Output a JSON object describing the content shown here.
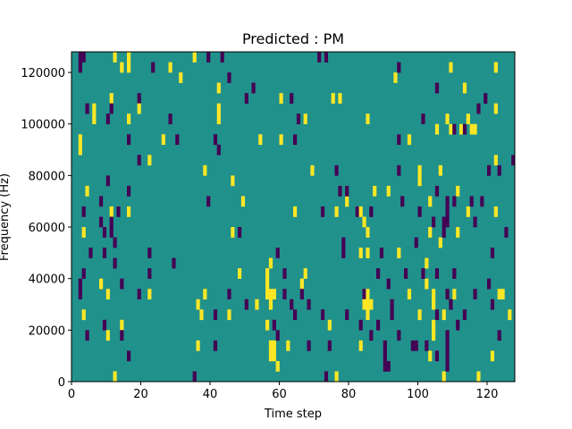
{
  "chart_data": {
    "type": "heatmap",
    "title": "Predicted : PM",
    "xlabel": "Time step",
    "ylabel": "Frequency (Hz)",
    "xlim": [
      0,
      128
    ],
    "ylim": [
      0,
      128000
    ],
    "xticks": [
      0,
      20,
      40,
      60,
      80,
      100,
      120
    ],
    "xtick_labels": [
      "0",
      "20",
      "40",
      "60",
      "80",
      "100",
      "120"
    ],
    "yticks": [
      0,
      20000,
      40000,
      60000,
      80000,
      100000,
      120000
    ],
    "ytick_labels": [
      "0",
      "20000",
      "40000",
      "60000",
      "80000",
      "100000",
      "120000"
    ],
    "grid": false,
    "legend": "none",
    "colormap": "viridis",
    "background_value": 0,
    "colors": {
      "low": "#440154",
      "mid": "#21918c",
      "high": "#fde725"
    },
    "cell_height_hz": 4000,
    "cells": [
      {
        "t": 2,
        "f": 120000,
        "v": -1
      },
      {
        "t": 2,
        "f": 124000,
        "v": -1
      },
      {
        "t": 3,
        "f": 124000,
        "v": -1
      },
      {
        "t": 4,
        "f": 104000,
        "v": -1
      },
      {
        "t": 2,
        "f": 92000,
        "v": 1
      },
      {
        "t": 2,
        "f": 88000,
        "v": 1
      },
      {
        "t": 4,
        "f": 72000,
        "v": 1
      },
      {
        "t": 3,
        "f": 64000,
        "v": -1
      },
      {
        "t": 3,
        "f": 56000,
        "v": 1
      },
      {
        "t": 5,
        "f": 48000,
        "v": -1
      },
      {
        "t": 3,
        "f": 40000,
        "v": -1
      },
      {
        "t": 2,
        "f": 36000,
        "v": -1
      },
      {
        "t": 2,
        "f": 32000,
        "v": -1
      },
      {
        "t": 3,
        "f": 24000,
        "v": 1
      },
      {
        "t": 4,
        "f": 16000,
        "v": -1
      },
      {
        "t": 6,
        "f": 104000,
        "v": 1
      },
      {
        "t": 6,
        "f": 100000,
        "v": 1
      },
      {
        "t": 8,
        "f": 68000,
        "v": -1
      },
      {
        "t": 8,
        "f": 60000,
        "v": -1
      },
      {
        "t": 8,
        "f": 36000,
        "v": 1
      },
      {
        "t": 9,
        "f": 56000,
        "v": -1
      },
      {
        "t": 9,
        "f": 48000,
        "v": -1
      },
      {
        "t": 9,
        "f": 20000,
        "v": -1
      },
      {
        "t": 10,
        "f": 76000,
        "v": -1
      },
      {
        "t": 10,
        "f": 32000,
        "v": 1
      },
      {
        "t": 10,
        "f": 16000,
        "v": 1
      },
      {
        "t": 11,
        "f": 108000,
        "v": 1
      },
      {
        "t": 11,
        "f": 104000,
        "v": -1
      },
      {
        "t": 10,
        "f": 100000,
        "v": -1
      },
      {
        "t": 11,
        "f": 64000,
        "v": 1
      },
      {
        "t": 11,
        "f": 60000,
        "v": -1
      },
      {
        "t": 11,
        "f": 56000,
        "v": -1
      },
      {
        "t": 12,
        "f": 124000,
        "v": 1
      },
      {
        "t": 12,
        "f": 52000,
        "v": -1
      },
      {
        "t": 12,
        "f": 44000,
        "v": -1
      },
      {
        "t": 12,
        "f": 0,
        "v": 1
      },
      {
        "t": 13,
        "f": 64000,
        "v": -1
      },
      {
        "t": 14,
        "f": 120000,
        "v": 1
      },
      {
        "t": 14,
        "f": 36000,
        "v": -1
      },
      {
        "t": 14,
        "f": 20000,
        "v": 1
      },
      {
        "t": 14,
        "f": 16000,
        "v": -1
      },
      {
        "t": 16,
        "f": 124000,
        "v": 1
      },
      {
        "t": 16,
        "f": 120000,
        "v": 1
      },
      {
        "t": 16,
        "f": 100000,
        "v": 1
      },
      {
        "t": 16,
        "f": 92000,
        "v": -1
      },
      {
        "t": 16,
        "f": 72000,
        "v": -1
      },
      {
        "t": 16,
        "f": 64000,
        "v": 1
      },
      {
        "t": 16,
        "f": 8000,
        "v": -1
      },
      {
        "t": 19,
        "f": 108000,
        "v": -1
      },
      {
        "t": 19,
        "f": 104000,
        "v": 1
      },
      {
        "t": 19,
        "f": 84000,
        "v": -1
      },
      {
        "t": 19,
        "f": 32000,
        "v": -1
      },
      {
        "t": 22,
        "f": 84000,
        "v": 1
      },
      {
        "t": 22,
        "f": 48000,
        "v": -1
      },
      {
        "t": 22,
        "f": 40000,
        "v": -1
      },
      {
        "t": 22,
        "f": 32000,
        "v": 1
      },
      {
        "t": 23,
        "f": 120000,
        "v": -1
      },
      {
        "t": 26,
        "f": 92000,
        "v": 1
      },
      {
        "t": 28,
        "f": 120000,
        "v": 1
      },
      {
        "t": 28,
        "f": 100000,
        "v": -1
      },
      {
        "t": 29,
        "f": 44000,
        "v": -1
      },
      {
        "t": 30,
        "f": 92000,
        "v": -1
      },
      {
        "t": 31,
        "f": 116000,
        "v": 1
      },
      {
        "t": 35,
        "f": 124000,
        "v": 1
      },
      {
        "t": 35,
        "f": 0,
        "v": -1
      },
      {
        "t": 36,
        "f": 28000,
        "v": 1
      },
      {
        "t": 36,
        "f": 12000,
        "v": 1
      },
      {
        "t": 37,
        "f": 24000,
        "v": 1
      },
      {
        "t": 38,
        "f": 32000,
        "v": 1
      },
      {
        "t": 38,
        "f": 80000,
        "v": 1
      },
      {
        "t": 39,
        "f": 124000,
        "v": -1
      },
      {
        "t": 39,
        "f": 68000,
        "v": -1
      },
      {
        "t": 41,
        "f": 92000,
        "v": -1
      },
      {
        "t": 41,
        "f": 24000,
        "v": -1
      },
      {
        "t": 41,
        "f": 12000,
        "v": -1
      },
      {
        "t": 42,
        "f": 112000,
        "v": 1
      },
      {
        "t": 42,
        "f": 104000,
        "v": 1
      },
      {
        "t": 42,
        "f": 100000,
        "v": 1
      },
      {
        "t": 42,
        "f": 88000,
        "v": -1
      },
      {
        "t": 43,
        "f": 124000,
        "v": -1
      },
      {
        "t": 45,
        "f": 116000,
        "v": -1
      },
      {
        "t": 45,
        "f": 32000,
        "v": -1
      },
      {
        "t": 45,
        "f": 24000,
        "v": 1
      },
      {
        "t": 46,
        "f": 76000,
        "v": 1
      },
      {
        "t": 46,
        "f": 56000,
        "v": 1
      },
      {
        "t": 48,
        "f": 56000,
        "v": -1
      },
      {
        "t": 48,
        "f": 40000,
        "v": 1
      },
      {
        "t": 49,
        "f": 68000,
        "v": 1
      },
      {
        "t": 50,
        "f": 108000,
        "v": -1
      },
      {
        "t": 50,
        "f": 28000,
        "v": -1
      },
      {
        "t": 52,
        "f": 112000,
        "v": -1
      },
      {
        "t": 53,
        "f": 28000,
        "v": 1
      },
      {
        "t": 54,
        "f": 92000,
        "v": 1
      },
      {
        "t": 56,
        "f": 40000,
        "v": 1
      },
      {
        "t": 56,
        "f": 36000,
        "v": 1
      },
      {
        "t": 56,
        "f": 32000,
        "v": 1
      },
      {
        "t": 57,
        "f": 44000,
        "v": 1
      },
      {
        "t": 57,
        "f": 32000,
        "v": 1
      },
      {
        "t": 57,
        "f": 28000,
        "v": 1
      },
      {
        "t": 56,
        "f": 20000,
        "v": 1
      },
      {
        "t": 57,
        "f": 12000,
        "v": 1
      },
      {
        "t": 57,
        "f": 8000,
        "v": 1
      },
      {
        "t": 58,
        "f": 12000,
        "v": 1
      },
      {
        "t": 58,
        "f": 8000,
        "v": 1
      },
      {
        "t": 58,
        "f": 32000,
        "v": 1
      },
      {
        "t": 58,
        "f": 20000,
        "v": -1
      },
      {
        "t": 59,
        "f": 48000,
        "v": -1
      },
      {
        "t": 59,
        "f": 4000,
        "v": 1
      },
      {
        "t": 59,
        "f": 16000,
        "v": -1
      },
      {
        "t": 60,
        "f": 108000,
        "v": 1
      },
      {
        "t": 60,
        "f": 92000,
        "v": 1
      },
      {
        "t": 61,
        "f": 40000,
        "v": -1
      },
      {
        "t": 61,
        "f": 32000,
        "v": -1
      },
      {
        "t": 62,
        "f": 12000,
        "v": 1
      },
      {
        "t": 63,
        "f": 108000,
        "v": -1
      },
      {
        "t": 63,
        "f": 28000,
        "v": -1
      },
      {
        "t": 64,
        "f": 64000,
        "v": 1
      },
      {
        "t": 64,
        "f": 24000,
        "v": -1
      },
      {
        "t": 64,
        "f": 92000,
        "v": -1
      },
      {
        "t": 65,
        "f": 100000,
        "v": -1
      },
      {
        "t": 66,
        "f": 36000,
        "v": 1
      },
      {
        "t": 66,
        "f": 32000,
        "v": -1
      },
      {
        "t": 67,
        "f": 100000,
        "v": 1
      },
      {
        "t": 67,
        "f": 40000,
        "v": 1
      },
      {
        "t": 68,
        "f": 12000,
        "v": -1
      },
      {
        "t": 68,
        "f": 28000,
        "v": -1
      },
      {
        "t": 69,
        "f": 80000,
        "v": 1
      },
      {
        "t": 71,
        "f": 124000,
        "v": -1
      },
      {
        "t": 72,
        "f": 64000,
        "v": -1
      },
      {
        "t": 72,
        "f": 24000,
        "v": -1
      },
      {
        "t": 73,
        "f": 124000,
        "v": -1
      },
      {
        "t": 73,
        "f": 0,
        "v": -1
      },
      {
        "t": 74,
        "f": 20000,
        "v": 1
      },
      {
        "t": 74,
        "f": 12000,
        "v": -1
      },
      {
        "t": 75,
        "f": 108000,
        "v": 1
      },
      {
        "t": 76,
        "f": 80000,
        "v": -1
      },
      {
        "t": 76,
        "f": 64000,
        "v": 1
      },
      {
        "t": 76,
        "f": 0,
        "v": 1
      },
      {
        "t": 77,
        "f": 108000,
        "v": 1
      },
      {
        "t": 77,
        "f": 72000,
        "v": -1
      },
      {
        "t": 78,
        "f": 48000,
        "v": -1
      },
      {
        "t": 78,
        "f": 52000,
        "v": -1
      },
      {
        "t": 79,
        "f": 68000,
        "v": 1
      },
      {
        "t": 79,
        "f": 72000,
        "v": -1
      },
      {
        "t": 79,
        "f": 24000,
        "v": -1
      },
      {
        "t": 82,
        "f": 64000,
        "v": -1
      },
      {
        "t": 83,
        "f": 20000,
        "v": -1
      },
      {
        "t": 83,
        "f": 12000,
        "v": 1
      },
      {
        "t": 83,
        "f": 48000,
        "v": 1
      },
      {
        "t": 83,
        "f": 64000,
        "v": 1
      },
      {
        "t": 84,
        "f": 60000,
        "v": 1
      },
      {
        "t": 84,
        "f": 32000,
        "v": -1
      },
      {
        "t": 84,
        "f": 28000,
        "v": 1
      },
      {
        "t": 85,
        "f": 100000,
        "v": 1
      },
      {
        "t": 85,
        "f": 56000,
        "v": 1
      },
      {
        "t": 85,
        "f": 48000,
        "v": 1
      },
      {
        "t": 85,
        "f": 32000,
        "v": 1
      },
      {
        "t": 85,
        "f": 28000,
        "v": 1
      },
      {
        "t": 85,
        "f": 24000,
        "v": 1
      },
      {
        "t": 86,
        "f": 64000,
        "v": -1
      },
      {
        "t": 86,
        "f": 28000,
        "v": 1
      },
      {
        "t": 86,
        "f": 16000,
        "v": -1
      },
      {
        "t": 87,
        "f": 72000,
        "v": 1
      },
      {
        "t": 88,
        "f": 40000,
        "v": -1
      },
      {
        "t": 88,
        "f": 20000,
        "v": -1
      },
      {
        "t": 89,
        "f": 48000,
        "v": -1
      },
      {
        "t": 90,
        "f": 12000,
        "v": -1
      },
      {
        "t": 90,
        "f": 8000,
        "v": -1
      },
      {
        "t": 90,
        "f": 4000,
        "v": -1
      },
      {
        "t": 91,
        "f": 4000,
        "v": -1
      },
      {
        "t": 91,
        "f": 72000,
        "v": 1
      },
      {
        "t": 91,
        "f": 36000,
        "v": -1
      },
      {
        "t": 92,
        "f": 28000,
        "v": -1
      },
      {
        "t": 92,
        "f": 24000,
        "v": -1
      },
      {
        "t": 93,
        "f": 116000,
        "v": 1
      },
      {
        "t": 94,
        "f": 120000,
        "v": -1
      },
      {
        "t": 94,
        "f": 92000,
        "v": -1
      },
      {
        "t": 94,
        "f": 80000,
        "v": -1
      },
      {
        "t": 94,
        "f": 48000,
        "v": 1
      },
      {
        "t": 94,
        "f": 16000,
        "v": -1
      },
      {
        "t": 95,
        "f": 68000,
        "v": -1
      },
      {
        "t": 96,
        "f": 40000,
        "v": -1
      },
      {
        "t": 97,
        "f": 92000,
        "v": 1
      },
      {
        "t": 97,
        "f": 32000,
        "v": 1
      },
      {
        "t": 98,
        "f": 12000,
        "v": -1
      },
      {
        "t": 99,
        "f": 12000,
        "v": -1
      },
      {
        "t": 99,
        "f": 52000,
        "v": -1
      },
      {
        "t": 100,
        "f": 80000,
        "v": 1
      },
      {
        "t": 100,
        "f": 76000,
        "v": 1
      },
      {
        "t": 100,
        "f": 64000,
        "v": -1
      },
      {
        "t": 100,
        "f": 24000,
        "v": 1
      },
      {
        "t": 101,
        "f": 100000,
        "v": -1
      },
      {
        "t": 101,
        "f": 40000,
        "v": -1
      },
      {
        "t": 102,
        "f": 44000,
        "v": 1
      },
      {
        "t": 102,
        "f": 36000,
        "v": 1
      },
      {
        "t": 102,
        "f": 12000,
        "v": -1
      },
      {
        "t": 103,
        "f": 68000,
        "v": 1
      },
      {
        "t": 103,
        "f": 56000,
        "v": 1
      },
      {
        "t": 103,
        "f": 8000,
        "v": 1
      },
      {
        "t": 104,
        "f": 60000,
        "v": -1
      },
      {
        "t": 104,
        "f": 32000,
        "v": 1
      },
      {
        "t": 104,
        "f": 28000,
        "v": 1
      },
      {
        "t": 104,
        "f": 20000,
        "v": 1
      },
      {
        "t": 104,
        "f": 16000,
        "v": 1
      },
      {
        "t": 105,
        "f": 112000,
        "v": -1
      },
      {
        "t": 105,
        "f": 96000,
        "v": 1
      },
      {
        "t": 105,
        "f": 72000,
        "v": -1
      },
      {
        "t": 105,
        "f": 40000,
        "v": -1
      },
      {
        "t": 105,
        "f": 24000,
        "v": -1
      },
      {
        "t": 105,
        "f": 8000,
        "v": -1
      },
      {
        "t": 106,
        "f": 80000,
        "v": 1
      },
      {
        "t": 106,
        "f": 52000,
        "v": 1
      },
      {
        "t": 107,
        "f": 60000,
        "v": -1
      },
      {
        "t": 107,
        "f": 56000,
        "v": -1
      },
      {
        "t": 107,
        "f": 24000,
        "v": 1
      },
      {
        "t": 107,
        "f": 0,
        "v": 1
      },
      {
        "t": 108,
        "f": 100000,
        "v": 1
      },
      {
        "t": 108,
        "f": 68000,
        "v": -1
      },
      {
        "t": 108,
        "f": 64000,
        "v": -1
      },
      {
        "t": 108,
        "f": 60000,
        "v": -1
      },
      {
        "t": 108,
        "f": 32000,
        "v": -1
      },
      {
        "t": 108,
        "f": 16000,
        "v": -1
      },
      {
        "t": 108,
        "f": 12000,
        "v": -1
      },
      {
        "t": 108,
        "f": 8000,
        "v": -1
      },
      {
        "t": 108,
        "f": 4000,
        "v": -1
      },
      {
        "t": 109,
        "f": 96000,
        "v": 1
      },
      {
        "t": 109,
        "f": 28000,
        "v": -1
      },
      {
        "t": 109,
        "f": 120000,
        "v": 1
      },
      {
        "t": 110,
        "f": 96000,
        "v": -1
      },
      {
        "t": 110,
        "f": 68000,
        "v": -1
      },
      {
        "t": 110,
        "f": 40000,
        "v": -1
      },
      {
        "t": 110,
        "f": 32000,
        "v": 1
      },
      {
        "t": 111,
        "f": 56000,
        "v": 1
      },
      {
        "t": 111,
        "f": 72000,
        "v": 1
      },
      {
        "t": 111,
        "f": 20000,
        "v": -1
      },
      {
        "t": 112,
        "f": 96000,
        "v": 1
      },
      {
        "t": 113,
        "f": 96000,
        "v": -1
      },
      {
        "t": 113,
        "f": 112000,
        "v": 1
      },
      {
        "t": 113,
        "f": 24000,
        "v": -1
      },
      {
        "t": 114,
        "f": 64000,
        "v": 1
      },
      {
        "t": 114,
        "f": 100000,
        "v": 1
      },
      {
        "t": 115,
        "f": 96000,
        "v": 1
      },
      {
        "t": 115,
        "f": 68000,
        "v": -1
      },
      {
        "t": 116,
        "f": 96000,
        "v": 1
      },
      {
        "t": 116,
        "f": 60000,
        "v": -1
      },
      {
        "t": 116,
        "f": 32000,
        "v": -1
      },
      {
        "t": 117,
        "f": 104000,
        "v": -1
      },
      {
        "t": 117,
        "f": 0,
        "v": 1
      },
      {
        "t": 118,
        "f": 68000,
        "v": -1
      },
      {
        "t": 119,
        "f": 108000,
        "v": -1
      },
      {
        "t": 120,
        "f": 80000,
        "v": -1
      },
      {
        "t": 120,
        "f": 36000,
        "v": -1
      },
      {
        "t": 121,
        "f": 28000,
        "v": -1
      },
      {
        "t": 121,
        "f": 48000,
        "v": -1
      },
      {
        "t": 121,
        "f": 8000,
        "v": 1
      },
      {
        "t": 122,
        "f": 104000,
        "v": 1
      },
      {
        "t": 122,
        "f": 84000,
        "v": 1
      },
      {
        "t": 122,
        "f": 64000,
        "v": 1
      },
      {
        "t": 122,
        "f": 120000,
        "v": 1
      },
      {
        "t": 123,
        "f": 80000,
        "v": -1
      },
      {
        "t": 123,
        "f": 16000,
        "v": -1
      },
      {
        "t": 123,
        "f": 32000,
        "v": 1
      },
      {
        "t": 124,
        "f": 32000,
        "v": 1
      },
      {
        "t": 125,
        "f": 56000,
        "v": -1
      },
      {
        "t": 126,
        "f": 24000,
        "v": 1
      },
      {
        "t": 127,
        "f": 84000,
        "v": -1
      }
    ]
  }
}
